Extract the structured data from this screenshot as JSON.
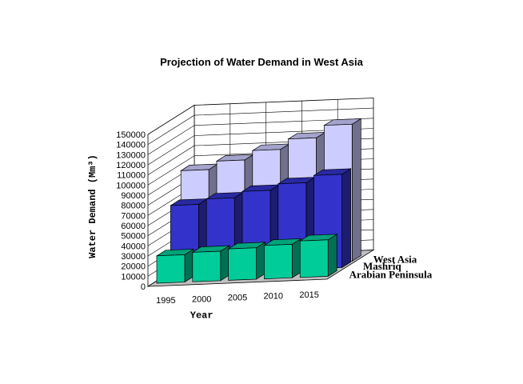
{
  "chart_data": {
    "type": "bar",
    "title": "Projection of Water Demand in West Asia",
    "xlabel": "Year",
    "ylabel": "Water Demand (Mm³)",
    "categories": [
      "1995",
      "2000",
      "2005",
      "2010",
      "2015"
    ],
    "ylim": [
      0,
      150000
    ],
    "yticks": [
      "0",
      "10000",
      "20000",
      "30000",
      "40000",
      "50000",
      "60000",
      "70000",
      "80000",
      "90000",
      "100000",
      "110000",
      "120000",
      "130000",
      "140000",
      "150000"
    ],
    "grid": true,
    "series": [
      {
        "name": "Arabian Peninsula",
        "values": [
          27000,
          29000,
          31000,
          33000,
          36000
        ],
        "color": "#00CC99"
      },
      {
        "name": "Mashriq",
        "values": [
          68000,
          73000,
          79000,
          85000,
          92000
        ],
        "color": "#3333CC"
      },
      {
        "name": "West Asia",
        "values": [
          96000,
          104000,
          113000,
          123000,
          135000
        ],
        "color": "#CCCCFF"
      }
    ]
  }
}
